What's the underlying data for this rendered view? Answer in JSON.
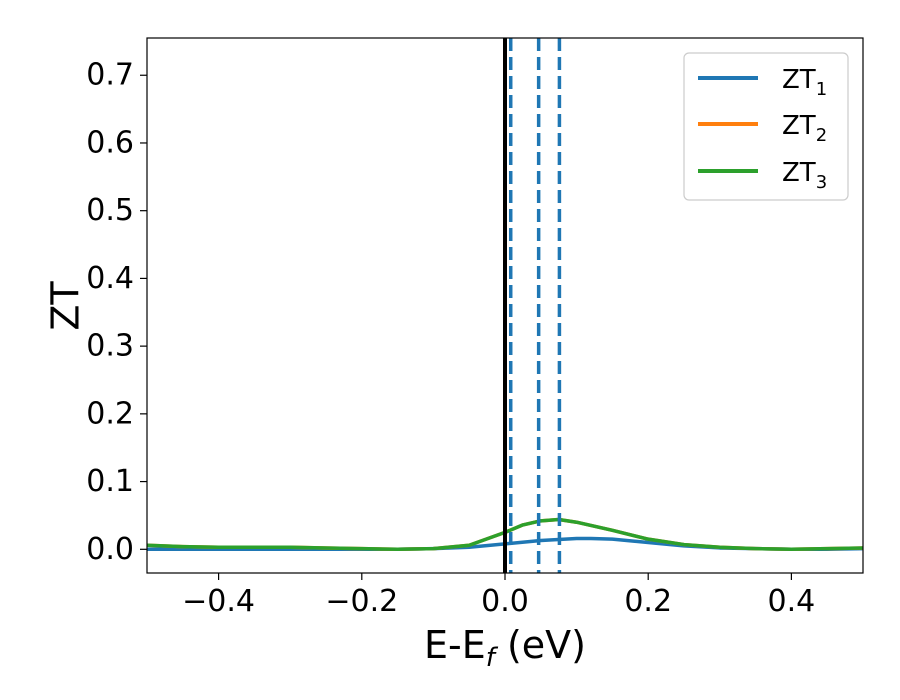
{
  "chart_data": {
    "type": "line",
    "xlabel": "E-E",
    "xlabel_sub": "f",
    "xlabel_unit": " (eV)",
    "ylabel": "ZT",
    "xlim": [
      -0.5,
      0.5
    ],
    "ylim": [
      -0.035,
      0.755
    ],
    "xticks": [
      -0.4,
      -0.2,
      0.0,
      0.2,
      0.4
    ],
    "xtick_labels": [
      "−0.4",
      "−0.2",
      "0.0",
      "0.2",
      "0.4"
    ],
    "yticks": [
      0.0,
      0.1,
      0.2,
      0.3,
      0.4,
      0.5,
      0.6,
      0.7
    ],
    "ytick_labels": [
      "0.0",
      "0.1",
      "0.2",
      "0.3",
      "0.4",
      "0.5",
      "0.6",
      "0.7"
    ],
    "grid": false,
    "legend_position": "top-right",
    "vlines": [
      {
        "x": 0.0,
        "style": "solid",
        "color": "#000000"
      },
      {
        "x": 0.008,
        "style": "dashed",
        "color": "#1f77b4"
      },
      {
        "x": 0.047,
        "style": "dashed",
        "color": "#1f77b4"
      },
      {
        "x": 0.076,
        "style": "dashed",
        "color": "#1f77b4"
      }
    ],
    "series": [
      {
        "name": "ZT",
        "subscript": "1",
        "color": "#1f77b4",
        "x": [
          -0.5,
          -0.45,
          -0.4,
          -0.35,
          -0.3,
          -0.25,
          -0.2,
          -0.15,
          -0.1,
          -0.05,
          0.0,
          0.05,
          0.1,
          0.12,
          0.15,
          0.2,
          0.25,
          0.3,
          0.35,
          0.4,
          0.45,
          0.5
        ],
        "y": [
          0.0,
          0.0,
          0.0,
          0.0,
          0.0,
          0.0,
          0.0,
          0.0,
          0.001,
          0.003,
          0.008,
          0.013,
          0.016,
          0.016,
          0.015,
          0.01,
          0.005,
          0.002,
          0.001,
          0.0,
          0.0,
          0.001
        ]
      },
      {
        "name": "ZT",
        "subscript": "2",
        "color": "#ff7f0e",
        "x": [
          -0.5,
          -0.45,
          -0.4,
          -0.35,
          -0.3,
          -0.25,
          -0.2,
          -0.15,
          -0.1,
          -0.05,
          0.0,
          0.025,
          0.05,
          0.075,
          0.1,
          0.15,
          0.2,
          0.25,
          0.3,
          0.35,
          0.4,
          0.45,
          0.5
        ],
        "y": [
          0.006,
          0.004,
          0.003,
          0.003,
          0.003,
          0.002,
          0.001,
          0.0,
          0.001,
          0.006,
          0.025,
          0.036,
          0.042,
          0.044,
          0.04,
          0.028,
          0.015,
          0.007,
          0.003,
          0.001,
          0.0,
          0.001,
          0.002
        ]
      },
      {
        "name": "ZT",
        "subscript": "3",
        "color": "#2ca02c",
        "x": [
          -0.5,
          -0.45,
          -0.4,
          -0.35,
          -0.3,
          -0.25,
          -0.2,
          -0.15,
          -0.1,
          -0.05,
          0.0,
          0.025,
          0.05,
          0.075,
          0.1,
          0.15,
          0.2,
          0.25,
          0.3,
          0.35,
          0.4,
          0.45,
          0.5
        ],
        "y": [
          0.006,
          0.004,
          0.003,
          0.003,
          0.003,
          0.002,
          0.001,
          0.0,
          0.001,
          0.006,
          0.025,
          0.036,
          0.042,
          0.044,
          0.04,
          0.028,
          0.015,
          0.007,
          0.003,
          0.001,
          0.0,
          0.001,
          0.002
        ]
      }
    ]
  }
}
